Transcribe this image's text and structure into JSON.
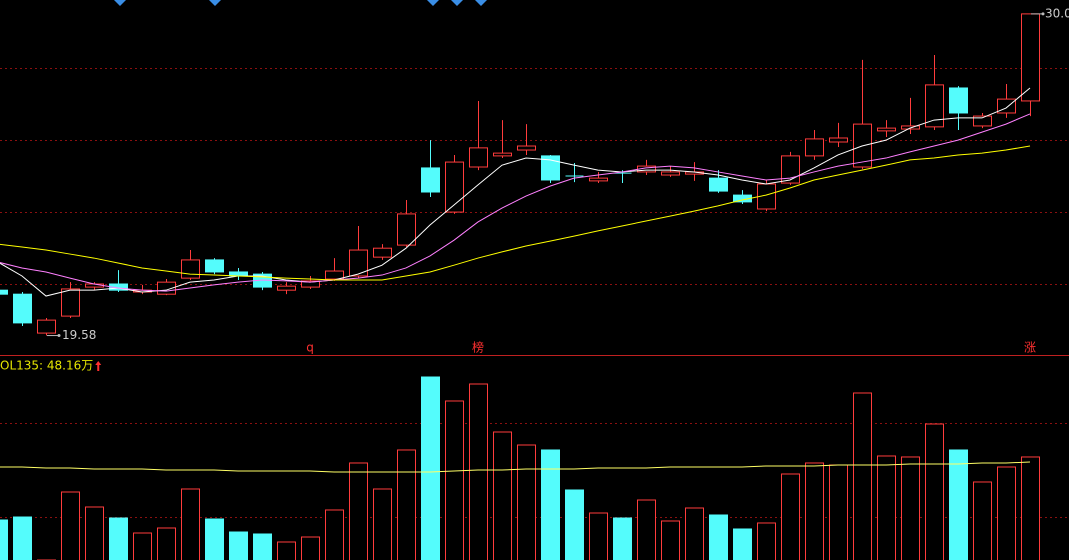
{
  "chart_data": [
    {
      "type": "candlestick",
      "up_color": "#ff3c3c",
      "down_color": "#54fcfc",
      "ylim": [
        18.95,
        30.45
      ],
      "yticks": [
        21.25,
        23.58,
        25.91,
        28.25
      ],
      "grid": true,
      "open": [
        21.05,
        20.92,
        19.66,
        20.21,
        21.15,
        21.25,
        20.99,
        20.92,
        21.44,
        22.03,
        21.64,
        21.57,
        21.05,
        21.15,
        21.41,
        21.51,
        22.12,
        22.51,
        25.01,
        23.58,
        25.04,
        25.4,
        25.59,
        25.4,
        24.75,
        24.59,
        24.84,
        24.88,
        24.78,
        24.81,
        24.68,
        24.13,
        23.68,
        24.52,
        25.4,
        25.85,
        25.04,
        26.21,
        26.27,
        26.34,
        27.6,
        26.37,
        26.79,
        27.18
      ],
      "high": [
        21.12,
        20.99,
        20.15,
        21.31,
        21.31,
        21.7,
        21.22,
        21.41,
        22.35,
        22.09,
        21.77,
        21.64,
        21.31,
        21.51,
        22.09,
        23.13,
        22.54,
        23.97,
        25.91,
        25.43,
        27.18,
        26.56,
        26.43,
        25.43,
        25.17,
        24.88,
        24.94,
        25.27,
        25.07,
        25.2,
        24.94,
        24.29,
        24.62,
        25.53,
        26.24,
        26.47,
        28.51,
        26.56,
        27.28,
        28.67,
        27.66,
        26.79,
        27.73,
        30.0
      ],
      "low": [
        20.86,
        19.89,
        19.58,
        20.15,
        21.05,
        20.99,
        20.92,
        20.89,
        21.38,
        21.57,
        21.38,
        21.05,
        20.92,
        21.09,
        21.35,
        21.44,
        22.03,
        22.45,
        24.07,
        23.52,
        24.94,
        25.33,
        25.43,
        24.52,
        24.55,
        24.52,
        24.52,
        24.78,
        24.72,
        24.59,
        24.2,
        23.84,
        23.61,
        24.46,
        25.27,
        25.69,
        24.97,
        26.01,
        26.11,
        26.24,
        26.24,
        26.3,
        26.63,
        26.69
      ],
      "close": [
        20.92,
        19.99,
        20.08,
        21.09,
        21.25,
        21.05,
        21.05,
        21.31,
        22.03,
        21.64,
        21.51,
        21.15,
        21.18,
        21.35,
        21.67,
        22.35,
        22.41,
        23.52,
        24.23,
        25.2,
        25.66,
        25.49,
        25.72,
        24.62,
        24.72,
        24.68,
        24.81,
        25.07,
        24.88,
        24.88,
        24.26,
        23.91,
        24.49,
        25.4,
        25.95,
        25.98,
        26.43,
        26.3,
        26.37,
        27.7,
        26.79,
        26.69,
        27.24,
        30.0
      ],
      "lines": [
        {
          "color": "#ffffff",
          "values": [
            21.96,
            21.51,
            20.86,
            21.05,
            21.05,
            21.12,
            20.99,
            21.05,
            21.31,
            21.38,
            21.51,
            21.51,
            21.38,
            21.31,
            21.38,
            21.57,
            21.86,
            22.41,
            23.16,
            23.81,
            24.46,
            25.1,
            25.33,
            25.27,
            25.1,
            24.94,
            24.88,
            24.94,
            24.94,
            24.88,
            24.78,
            24.62,
            24.49,
            24.62,
            25.01,
            25.43,
            25.72,
            25.91,
            26.3,
            26.56,
            26.63,
            26.63,
            26.95,
            27.6
          ]
        },
        {
          "color": "#ff80ff",
          "values": [
            21.96,
            21.77,
            21.64,
            21.44,
            21.25,
            21.12,
            21.05,
            21.02,
            21.12,
            21.22,
            21.31,
            21.38,
            21.35,
            21.31,
            21.38,
            21.44,
            21.54,
            21.77,
            22.16,
            22.67,
            23.26,
            23.71,
            24.1,
            24.42,
            24.68,
            24.78,
            24.88,
            25.01,
            25.07,
            25.01,
            24.88,
            24.75,
            24.62,
            24.68,
            24.88,
            25.07,
            25.2,
            25.33,
            25.53,
            25.72,
            25.91,
            26.17,
            26.43,
            26.76
          ]
        },
        {
          "color": "#ffff00",
          "values": [
            22.54,
            22.45,
            22.35,
            22.22,
            22.09,
            21.93,
            21.77,
            21.67,
            21.57,
            21.54,
            21.51,
            21.48,
            21.44,
            21.41,
            21.38,
            21.38,
            21.38,
            21.51,
            21.64,
            21.86,
            22.09,
            22.29,
            22.48,
            22.64,
            22.8,
            22.97,
            23.13,
            23.29,
            23.45,
            23.61,
            23.78,
            23.97,
            24.13,
            24.36,
            24.62,
            24.78,
            24.94,
            25.1,
            25.27,
            25.33,
            25.43,
            25.49,
            25.59,
            25.72
          ]
        }
      ],
      "high_label": "30.0",
      "low_label": "19.58",
      "signals": [
        null,
        null,
        null,
        null,
        null,
        null,
        null,
        null,
        null,
        null,
        null,
        null,
        null,
        "q",
        null,
        null,
        null,
        null,
        null,
        null,
        "榜",
        null,
        null,
        null,
        null,
        null,
        null,
        null,
        null,
        null,
        null,
        null,
        null,
        null,
        null,
        null,
        null,
        null,
        null,
        null,
        null,
        null,
        null,
        "涨"
      ]
    },
    {
      "type": "bar",
      "label": "OL135: 48.16万",
      "ylim": [
        7.83,
        87.3
      ],
      "yticks": [
        24.66,
        61.47
      ],
      "values": [
        23.49,
        24.66,
        5.87,
        34.45,
        28.58,
        24.27,
        18.4,
        20.36,
        35.63,
        23.88,
        18.79,
        18.01,
        14.88,
        16.83,
        27.41,
        45.81,
        35.63,
        50.9,
        79.47,
        70.08,
        76.73,
        57.94,
        52.85,
        50.9,
        35.24,
        26.23,
        24.27,
        31.32,
        23.1,
        28.19,
        25.45,
        19.97,
        22.32,
        41.5,
        45.81,
        45.02,
        73.21,
        48.55,
        48.16,
        61.07,
        50.9,
        38.37,
        44.24,
        48.16
      ],
      "line_color": "#ffff66",
      "line_values": [
        44.24,
        44.24,
        43.85,
        43.85,
        43.46,
        43.46,
        43.46,
        43.07,
        43.07,
        43.07,
        42.67,
        42.67,
        42.67,
        42.67,
        42.28,
        42.28,
        42.28,
        42.28,
        42.28,
        42.67,
        43.07,
        43.07,
        43.46,
        43.46,
        43.46,
        43.85,
        43.85,
        43.85,
        44.24,
        44.24,
        44.24,
        44.24,
        44.63,
        44.63,
        44.63,
        45.02,
        45.02,
        45.02,
        45.41,
        45.41,
        45.41,
        45.81,
        45.81,
        46.2
      ]
    }
  ]
}
